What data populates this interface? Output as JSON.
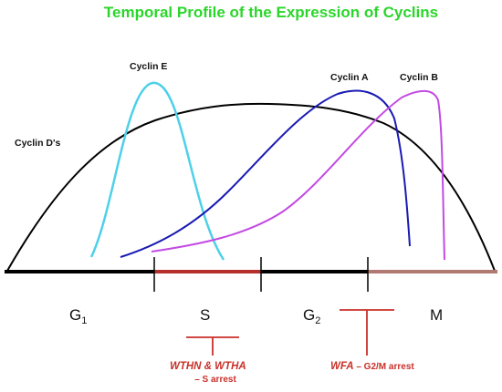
{
  "title": "Temporal Profile of the Expression of Cyclins",
  "colors": {
    "title": "#2bd62b",
    "cyclin_d": "#000000",
    "cyclin_e": "#4dd0e8",
    "cyclin_a": "#1a1ab4",
    "cyclin_b": "#c34ae3",
    "axis": "#000000",
    "axis_s": "#b5302a",
    "axis_m": "#b07a72",
    "inhibitor": "#c9302a"
  },
  "cyclins": [
    {
      "id": "d",
      "label": "Cyclin D's"
    },
    {
      "id": "e",
      "label": "Cyclin E"
    },
    {
      "id": "a",
      "label": "Cyclin A"
    },
    {
      "id": "b",
      "label": "Cyclin B"
    }
  ],
  "phases": [
    {
      "id": "g1",
      "label": "G",
      "sub": "1"
    },
    {
      "id": "s",
      "label": "S",
      "sub": ""
    },
    {
      "id": "g2",
      "label": "G",
      "sub": "2"
    },
    {
      "id": "m",
      "label": "M",
      "sub": ""
    }
  ],
  "inhibitors": [
    {
      "id": "s-arrest",
      "name": "WTHN & WTHA",
      "effect": "– S arrest"
    },
    {
      "id": "g2m-arrest",
      "name": "WFA",
      "effect": " – G2/M arrest"
    }
  ]
}
